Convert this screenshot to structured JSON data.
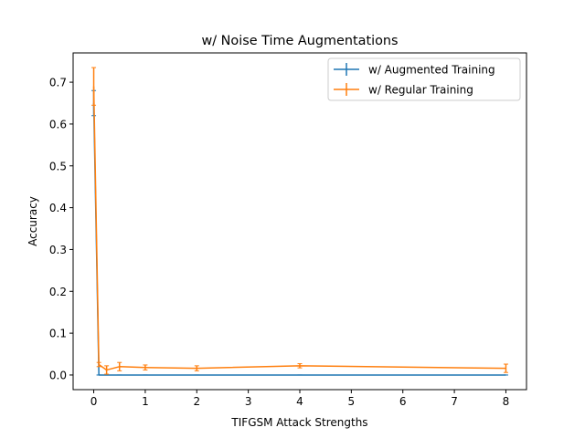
{
  "chart_data": {
    "type": "line",
    "title": "w/ Noise Time Augmentations",
    "xlabel": "TIFGSM Attack Strengths",
    "ylabel": "Accuracy",
    "xlim": [
      -0.4,
      8.4
    ],
    "ylim": [
      -0.035,
      0.77
    ],
    "xticks": [
      0,
      1,
      2,
      3,
      4,
      5,
      6,
      7,
      8
    ],
    "yticks": [
      0.0,
      0.1,
      0.2,
      0.3,
      0.4,
      0.5,
      0.6,
      0.7
    ],
    "xtick_labels": [
      "0",
      "1",
      "2",
      "3",
      "4",
      "5",
      "6",
      "7",
      "8"
    ],
    "ytick_labels": [
      "0.0",
      "0.1",
      "0.2",
      "0.3",
      "0.4",
      "0.5",
      "0.6",
      "0.7"
    ],
    "grid": false,
    "legend_position": "upper right",
    "series": [
      {
        "name": "w/ Augmented Training",
        "color": "#1f77b4",
        "x": [
          0,
          0.1,
          0.25,
          0.5,
          1,
          2,
          4,
          8
        ],
        "y": [
          0.65,
          0.0,
          0.0,
          0.0,
          0.0,
          0.0,
          0.0,
          0.0
        ],
        "err": [
          0.03,
          0.0,
          0.0,
          0.0,
          0.0,
          0.0,
          0.0,
          0.0
        ]
      },
      {
        "name": "w/ Regular Training",
        "color": "#ff7f0e",
        "x": [
          0,
          0.1,
          0.25,
          0.5,
          1,
          2,
          4,
          8
        ],
        "y": [
          0.69,
          0.025,
          0.012,
          0.02,
          0.018,
          0.016,
          0.022,
          0.016
        ],
        "err": [
          0.045,
          0.005,
          0.01,
          0.01,
          0.006,
          0.006,
          0.005,
          0.01
        ]
      }
    ]
  }
}
